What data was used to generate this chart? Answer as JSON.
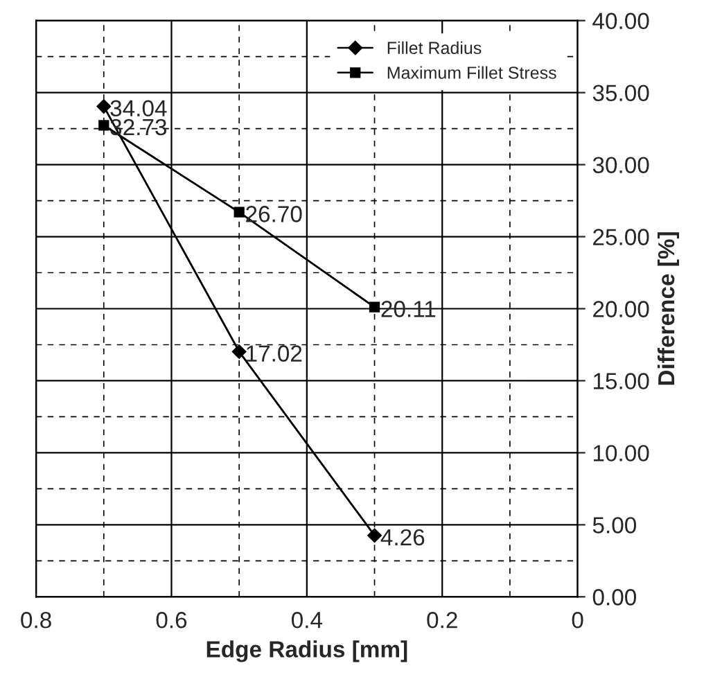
{
  "chart_data": {
    "type": "line",
    "xlabel": "Edge Radius [mm]",
    "ylabel": "Difference [%]",
    "x": [
      0.7,
      0.5,
      0.3
    ],
    "series": [
      {
        "name": "Fillet Radius",
        "color": "#000000",
        "marker": "diamond",
        "values": [
          34.04,
          17.02,
          4.26
        ],
        "value_labels": [
          "34.04",
          "17.02",
          "4.26"
        ]
      },
      {
        "name": "Maximum Fillet Stress",
        "color": "#000000",
        "marker": "square",
        "values": [
          32.73,
          26.7,
          20.11
        ],
        "value_labels": [
          "32.73",
          "26.70",
          "20.11"
        ]
      }
    ],
    "xlim": [
      0.8,
      0
    ],
    "xticks": [
      {
        "value": 0.8,
        "label": "0.8"
      },
      {
        "value": 0.6,
        "label": "0.6"
      },
      {
        "value": 0.4,
        "label": "0.4"
      },
      {
        "value": 0.2,
        "label": "0.2"
      },
      {
        "value": 0,
        "label": "0"
      }
    ],
    "ylim": [
      0,
      40
    ],
    "yticks": [
      {
        "value": 0,
        "label": "0.00"
      },
      {
        "value": 5,
        "label": "5.00"
      },
      {
        "value": 10,
        "label": "10.00"
      },
      {
        "value": 15,
        "label": "15.00"
      },
      {
        "value": 20,
        "label": "20.00"
      },
      {
        "value": 25,
        "label": "25.00"
      },
      {
        "value": 30,
        "label": "30.00"
      },
      {
        "value": 35,
        "label": "35.00"
      },
      {
        "value": 40,
        "label": "40.00"
      }
    ],
    "grid": true,
    "legend": "top right",
    "line_style": "solid"
  }
}
